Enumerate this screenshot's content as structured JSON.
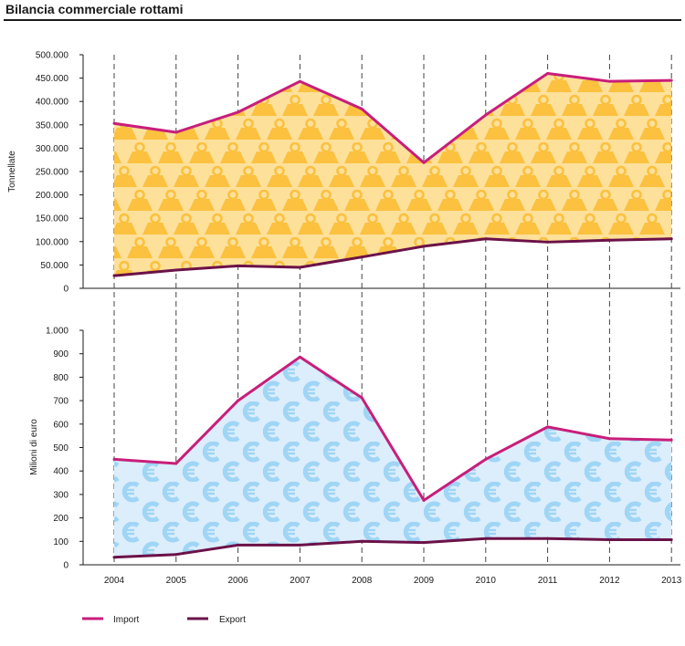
{
  "title": "Bilancia commerciale rottami",
  "colors": {
    "import": "#c81e7b",
    "export": "#6b1248",
    "tonnes_fill": "#fde09a",
    "tonnes_icon": "#fbc13f",
    "euro_fill": "#dcedfb",
    "euro_icon": "#9fd5f5"
  },
  "legend": [
    {
      "label": "Import",
      "color": "#c81e7b"
    },
    {
      "label": "Export",
      "color": "#6b1248"
    }
  ],
  "chart_data": [
    {
      "type": "area",
      "title": "",
      "xlabel": "",
      "ylabel": "Tonnellate",
      "x": [
        "2004",
        "2005",
        "2006",
        "2007",
        "2008",
        "2009",
        "2010",
        "2011",
        "2012",
        "2013"
      ],
      "ylim": [
        0,
        500000
      ],
      "yticks": [
        0,
        50000,
        100000,
        150000,
        200000,
        250000,
        300000,
        350000,
        400000,
        450000,
        500000
      ],
      "ytick_labels": [
        "0",
        "50.000",
        "100.000",
        "150.000",
        "200.000",
        "250.000",
        "300.000",
        "350.000",
        "400.000",
        "450.000",
        "500.000"
      ],
      "grid": "vertical dashed",
      "fill_icon": "weight-icon",
      "series": [
        {
          "name": "Import",
          "values": [
            353000,
            334000,
            377000,
            443000,
            384000,
            269000,
            371000,
            460000,
            443000,
            445000
          ]
        },
        {
          "name": "Export",
          "values": [
            27000,
            39000,
            48000,
            45000,
            67000,
            90000,
            106000,
            99000,
            103000,
            106000
          ]
        }
      ]
    },
    {
      "type": "area",
      "title": "",
      "xlabel": "",
      "ylabel": "Milioni di euro",
      "x": [
        "2004",
        "2005",
        "2006",
        "2007",
        "2008",
        "2009",
        "2010",
        "2011",
        "2012",
        "2013"
      ],
      "ylim": [
        0,
        1000
      ],
      "yticks": [
        0,
        100,
        200,
        300,
        400,
        500,
        600,
        700,
        800,
        900,
        1000
      ],
      "ytick_labels": [
        "0",
        "100",
        "200",
        "300",
        "400",
        "500",
        "600",
        "700",
        "800",
        "900",
        "1.000"
      ],
      "grid": "vertical dashed",
      "fill_icon": "euro-icon",
      "series": [
        {
          "name": "Import",
          "values": [
            450,
            432,
            700,
            886,
            712,
            275,
            450,
            588,
            538,
            532
          ]
        },
        {
          "name": "Export",
          "values": [
            32,
            44,
            84,
            84,
            100,
            95,
            112,
            112,
            107,
            107
          ]
        }
      ]
    }
  ]
}
